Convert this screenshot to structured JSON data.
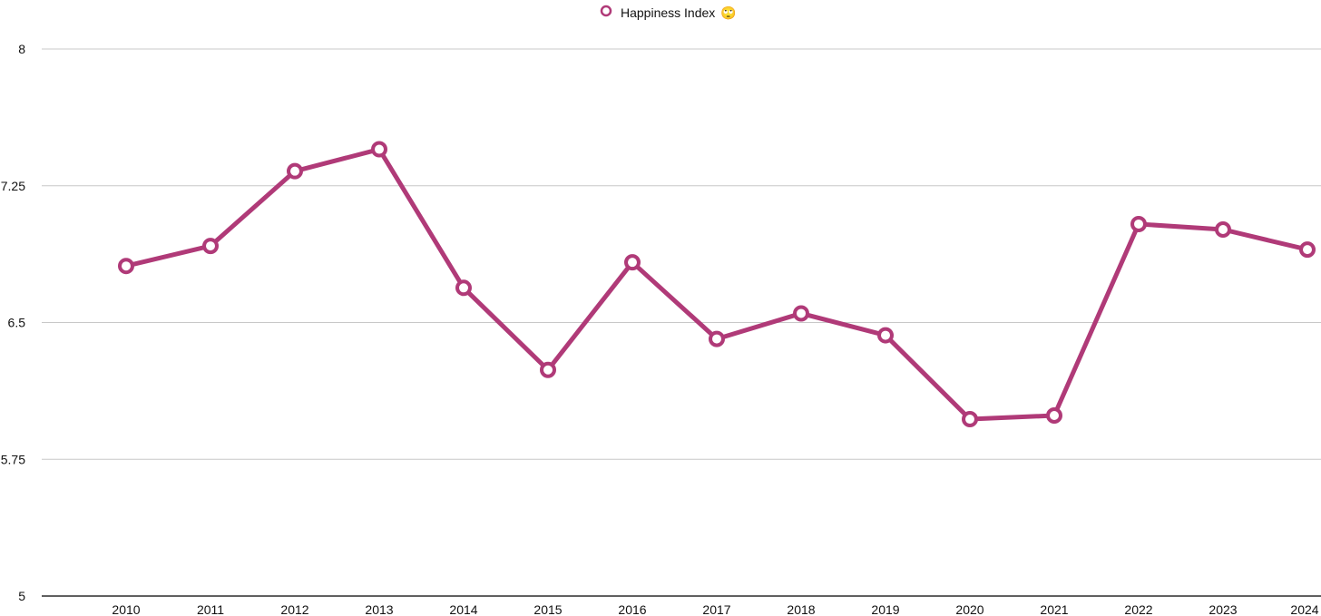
{
  "chart_data": {
    "type": "line",
    "title": "",
    "xlabel": "",
    "ylabel": "",
    "x": [
      "2010",
      "2011",
      "2012",
      "2013",
      "2014",
      "2015",
      "2016",
      "2017",
      "2018",
      "2019",
      "2020",
      "2021",
      "2022",
      "2023",
      "2024"
    ],
    "series": [
      {
        "name": "Happiness Index",
        "color": "#b03a78",
        "values": [
          6.81,
          6.92,
          7.33,
          7.45,
          6.69,
          6.24,
          6.83,
          6.41,
          6.55,
          6.43,
          5.97,
          5.99,
          7.04,
          7.01,
          6.9
        ]
      }
    ],
    "legend_emoji": "🙄",
    "ylim": [
      5,
      8
    ],
    "yticks": [
      {
        "value": 5,
        "label": "5"
      },
      {
        "value": 5.75,
        "label": "5.75"
      },
      {
        "value": 6.5,
        "label": "6.5"
      },
      {
        "value": 7.25,
        "label": "7.25"
      },
      {
        "value": 8,
        "label": "8"
      }
    ],
    "grid": true,
    "legend_position": "top-center"
  }
}
